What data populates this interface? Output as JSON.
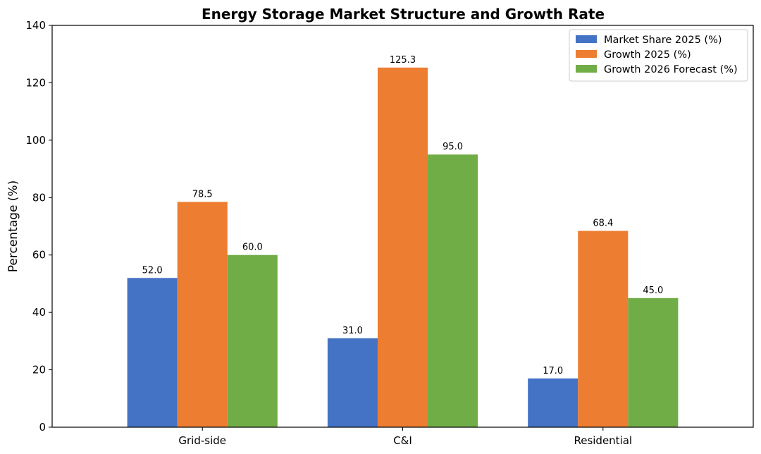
{
  "chart_data": {
    "type": "bar",
    "title": "Energy Storage Market Structure and Growth Rate",
    "xlabel": "",
    "ylabel": "Percentage (%)",
    "categories": [
      "Grid-side",
      "C&I",
      "Residential"
    ],
    "series": [
      {
        "name": "Market Share 2025 (%)",
        "values": [
          52.0,
          31.0,
          17.0
        ],
        "color": "#4472c4"
      },
      {
        "name": "Growth 2025 (%)",
        "values": [
          78.5,
          125.3,
          68.4
        ],
        "color": "#ed7d31"
      },
      {
        "name": "Growth 2026 Forecast (%)",
        "values": [
          60.0,
          95.0,
          45.0
        ],
        "color": "#70ad47"
      }
    ],
    "ylim": [
      0,
      140
    ],
    "yticks": [
      0,
      20,
      40,
      60,
      80,
      100,
      120,
      140
    ],
    "ytick_labels": [
      "0",
      "20",
      "40",
      "60",
      "80",
      "100",
      "120",
      "140"
    ],
    "value_labels": [
      [
        "52.0",
        "31.0",
        "17.0"
      ],
      [
        "78.5",
        "125.3",
        "68.4"
      ],
      [
        "60.0",
        "95.0",
        "45.0"
      ]
    ],
    "grid": false,
    "legend_position": "top-right"
  }
}
